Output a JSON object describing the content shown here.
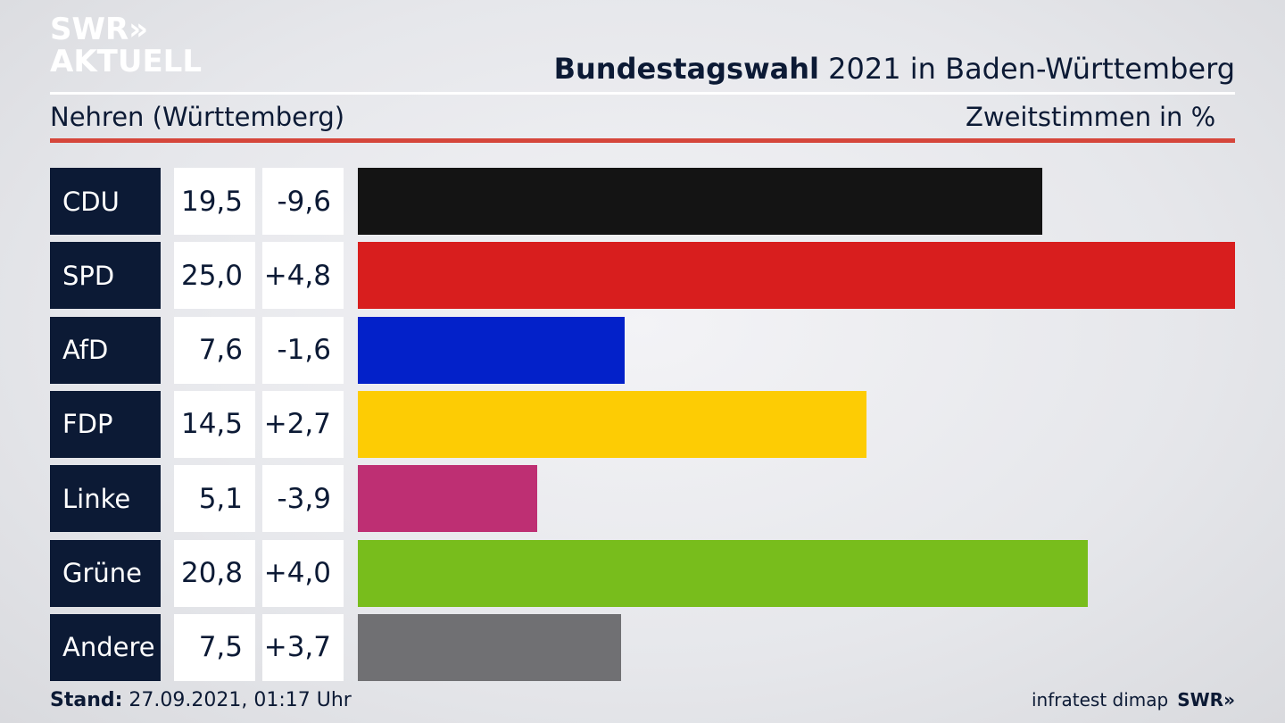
{
  "logo": {
    "line1": "SWR»",
    "line2": "AKTUELL"
  },
  "header": {
    "title_bold": "Bundestagswahl",
    "title_rest": " 2021 in Baden-Württemberg",
    "subtitle": "Nehren (Württemberg)",
    "vote_type": "Zweitstimmen",
    "unit": "in %"
  },
  "footer": {
    "stand_label": "Stand:",
    "stand_value": " 27.09.2021, 01:17 Uhr",
    "source": "infratest dimap",
    "brand": "SWR»"
  },
  "chart_data": {
    "type": "bar",
    "title": "Bundestagswahl 2021 in Baden-Württemberg",
    "categories": [
      "CDU",
      "SPD",
      "AfD",
      "FDP",
      "Linke",
      "Grüne",
      "Andere"
    ],
    "values": [
      19.5,
      25.0,
      7.6,
      14.5,
      5.1,
      20.8,
      7.5
    ],
    "values_label": [
      "19,5",
      "25,0",
      "7,6",
      "14,5",
      "5,1",
      "20,8",
      "7,5"
    ],
    "diffs_label": [
      "-9,6",
      "+4,8",
      "-1,6",
      "+2,7",
      "-3,9",
      "+4,0",
      "+3,7"
    ],
    "colors": [
      "#141414",
      "#d81e1e",
      "#0321c9",
      "#fdcc04",
      "#be2f73",
      "#78bd1c",
      "#707073"
    ],
    "xlim": [
      0,
      25.0
    ]
  }
}
